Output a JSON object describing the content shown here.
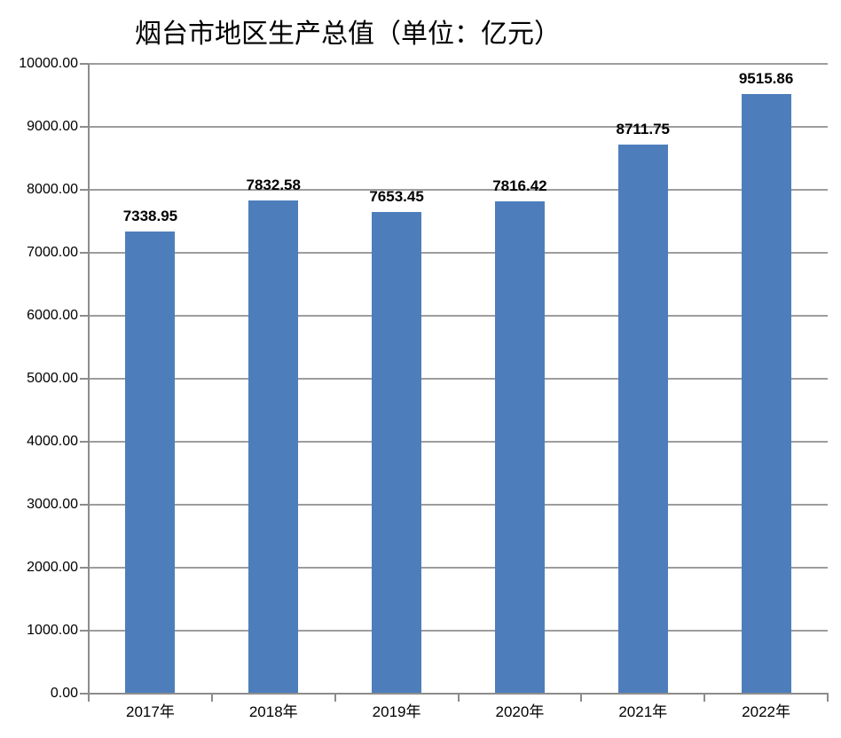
{
  "chart_data": {
    "type": "bar",
    "title": "烟台市地区生产总值（单位：亿元）",
    "categories": [
      "2017年",
      "2018年",
      "2019年",
      "2020年",
      "2021年",
      "2022年"
    ],
    "values": [
      7338.95,
      7832.58,
      7653.45,
      7816.42,
      8711.75,
      9515.86
    ],
    "data_labels": [
      "7338.95",
      "7832.58",
      "7653.45",
      "7816.42",
      "8711.75",
      "9515.86"
    ],
    "xlabel": "",
    "ylabel": "",
    "ylim": [
      0,
      10000
    ],
    "ytick_step": 1000,
    "ytick_labels": [
      "0.00",
      "1000.00",
      "2000.00",
      "3000.00",
      "4000.00",
      "5000.00",
      "6000.00",
      "7000.00",
      "8000.00",
      "9000.00",
      "10000.00"
    ],
    "grid": true,
    "legend": "none",
    "colors": {
      "bar": "#4D7EBB",
      "axis": "#8C8C8C",
      "gridline": "#9D9D9D",
      "text": "#000000",
      "background": "#FFFFFF"
    }
  }
}
